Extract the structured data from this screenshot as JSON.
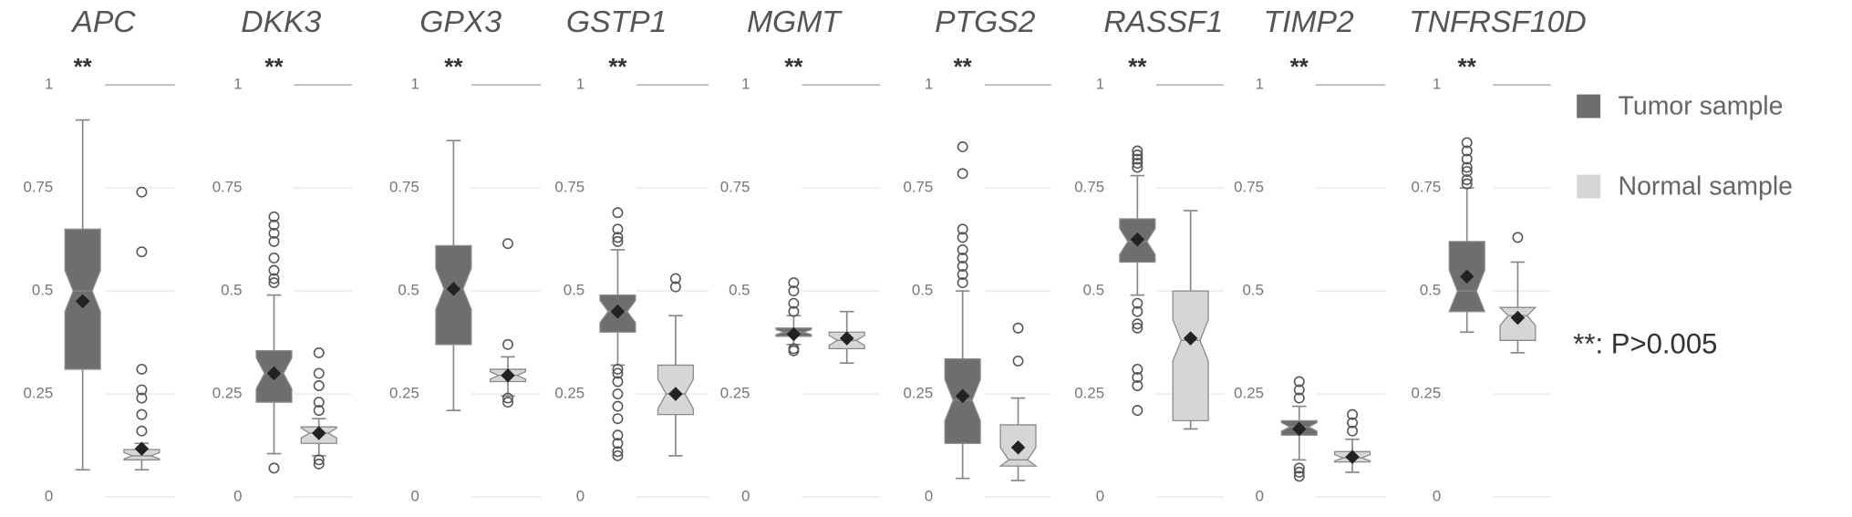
{
  "chart_data": {
    "type": "box",
    "series": [
      {
        "name": "Tumor sample",
        "color": "#6e6e6e"
      },
      {
        "name": "Normal sample",
        "color": "#d6d6d6"
      }
    ],
    "ylim": [
      0,
      1
    ],
    "yticks": [
      0,
      0.25,
      0.5,
      0.75,
      1
    ],
    "grid": true,
    "note": "**: P>0.005",
    "panels": [
      {
        "title": "APC",
        "annotation": "**",
        "boxes": [
          {
            "whisker_low": 0.066,
            "q1": 0.31,
            "median": 0.5,
            "q3": 0.65,
            "whisker_high": 0.915,
            "mean": 0.475,
            "outliers": []
          },
          {
            "whisker_low": 0.066,
            "q1": 0.09,
            "median": 0.1,
            "q3": 0.115,
            "whisker_high": 0.13,
            "mean": 0.117,
            "outliers": [
              0.74,
              0.595,
              0.31,
              0.26,
              0.24,
              0.2,
              0.16
            ]
          }
        ]
      },
      {
        "title": "DKK3",
        "annotation": "**",
        "boxes": [
          {
            "whisker_low": 0.105,
            "q1": 0.23,
            "median": 0.3,
            "q3": 0.355,
            "whisker_high": 0.49,
            "mean": 0.3,
            "outliers": [
              0.52,
              0.53,
              0.55,
              0.58,
              0.62,
              0.64,
              0.66,
              0.68,
              0.07
            ]
          },
          {
            "whisker_low": 0.1,
            "q1": 0.13,
            "median": 0.155,
            "q3": 0.17,
            "whisker_high": 0.19,
            "mean": 0.155,
            "outliers": [
              0.21,
              0.23,
              0.27,
              0.3,
              0.35,
              0.09,
              0.08
            ]
          }
        ]
      },
      {
        "title": "GPX3",
        "annotation": "**",
        "boxes": [
          {
            "whisker_low": 0.21,
            "q1": 0.37,
            "median": 0.505,
            "q3": 0.61,
            "whisker_high": 0.865,
            "mean": 0.505,
            "outliers": []
          },
          {
            "whisker_low": 0.245,
            "q1": 0.28,
            "median": 0.295,
            "q3": 0.31,
            "whisker_high": 0.34,
            "mean": 0.295,
            "outliers": [
              0.615,
              0.37,
              0.24,
              0.23
            ]
          }
        ]
      },
      {
        "title": "GSTP1",
        "annotation": "**",
        "boxes": [
          {
            "whisker_low": 0.32,
            "q1": 0.4,
            "median": 0.45,
            "q3": 0.49,
            "whisker_high": 0.6,
            "mean": 0.45,
            "outliers": [
              0.62,
              0.63,
              0.65,
              0.69,
              0.31,
              0.3,
              0.28,
              0.25,
              0.22,
              0.19,
              0.15,
              0.13,
              0.11,
              0.1
            ]
          },
          {
            "whisker_low": 0.1,
            "q1": 0.2,
            "median": 0.25,
            "q3": 0.32,
            "whisker_high": 0.44,
            "mean": 0.25,
            "outliers": [
              0.51,
              0.53
            ]
          }
        ]
      },
      {
        "title": "MGMT",
        "annotation": "**",
        "boxes": [
          {
            "whisker_low": 0.37,
            "q1": 0.39,
            "median": 0.4,
            "q3": 0.41,
            "whisker_high": 0.44,
            "mean": 0.395,
            "outliers": [
              0.45,
              0.47,
              0.5,
              0.52,
              0.36,
              0.355
            ]
          },
          {
            "whisker_low": 0.325,
            "q1": 0.36,
            "median": 0.38,
            "q3": 0.4,
            "whisker_high": 0.45,
            "mean": 0.385,
            "outliers": []
          }
        ]
      },
      {
        "title": "PTGS2",
        "annotation": "**",
        "boxes": [
          {
            "whisker_low": 0.045,
            "q1": 0.13,
            "median": 0.235,
            "q3": 0.335,
            "whisker_high": 0.5,
            "mean": 0.245,
            "outliers": [
              0.52,
              0.54,
              0.56,
              0.58,
              0.6,
              0.63,
              0.65,
              0.785,
              0.85
            ]
          },
          {
            "whisker_low": 0.04,
            "q1": 0.075,
            "median": 0.09,
            "q3": 0.175,
            "whisker_high": 0.24,
            "mean": 0.12,
            "outliers": [
              0.33,
              0.41
            ]
          }
        ]
      },
      {
        "title": "RASSF1",
        "annotation": "**",
        "boxes": [
          {
            "whisker_low": 0.49,
            "q1": 0.57,
            "median": 0.62,
            "q3": 0.675,
            "whisker_high": 0.78,
            "mean": 0.625,
            "outliers": [
              0.8,
              0.81,
              0.82,
              0.83,
              0.84,
              0.47,
              0.45,
              0.42,
              0.41,
              0.31,
              0.29,
              0.27,
              0.21
            ]
          },
          {
            "whisker_low": 0.165,
            "q1": 0.185,
            "median": 0.38,
            "q3": 0.5,
            "whisker_high": 0.695,
            "mean": 0.385,
            "outliers": []
          }
        ]
      },
      {
        "title": "TIMP2",
        "annotation": "**",
        "boxes": [
          {
            "whisker_low": 0.09,
            "q1": 0.15,
            "median": 0.17,
            "q3": 0.185,
            "whisker_high": 0.22,
            "mean": 0.165,
            "outliers": [
              0.24,
              0.26,
              0.28,
              0.07,
              0.06,
              0.05
            ]
          },
          {
            "whisker_low": 0.06,
            "q1": 0.085,
            "median": 0.095,
            "q3": 0.11,
            "whisker_high": 0.14,
            "mean": 0.097,
            "outliers": [
              0.16,
              0.18,
              0.2
            ]
          }
        ]
      },
      {
        "title": "TNFRSF10D",
        "annotation": "**",
        "boxes": [
          {
            "whisker_low": 0.4,
            "q1": 0.45,
            "median": 0.5,
            "q3": 0.62,
            "whisker_high": 0.75,
            "mean": 0.535,
            "outliers": [
              0.76,
              0.77,
              0.79,
              0.8,
              0.82,
              0.84,
              0.86
            ]
          },
          {
            "whisker_low": 0.35,
            "q1": 0.38,
            "median": 0.44,
            "q3": 0.46,
            "whisker_high": 0.57,
            "mean": 0.435,
            "outliers": [
              0.63
            ]
          }
        ]
      }
    ]
  }
}
